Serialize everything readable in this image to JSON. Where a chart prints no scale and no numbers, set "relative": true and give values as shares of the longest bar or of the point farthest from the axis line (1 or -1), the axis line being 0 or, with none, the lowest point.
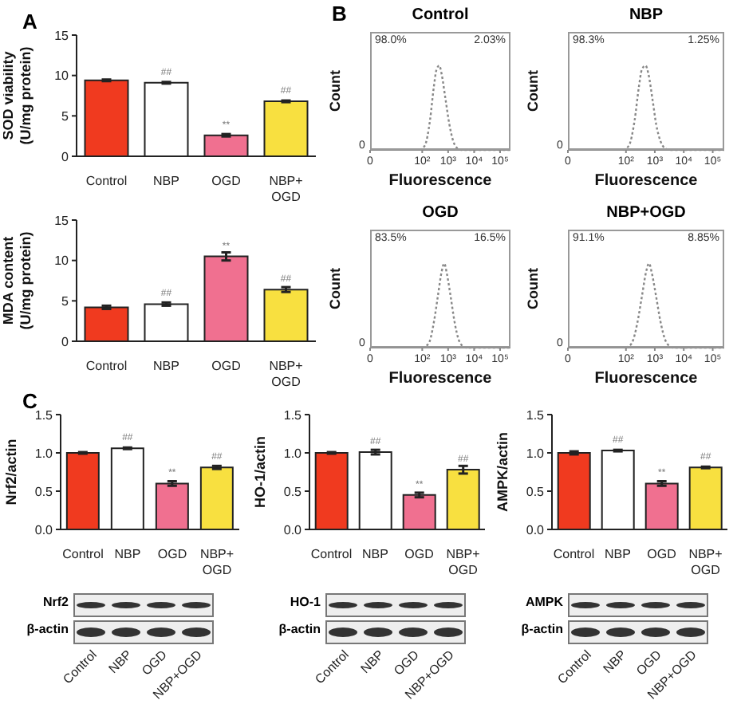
{
  "chart_data": [
    {
      "type": "bar",
      "ylabel": "SOD viability (U/mg protein)",
      "categories": [
        "Control",
        "NBP",
        "OGD",
        "NBP+ OGD"
      ],
      "values": [
        9.4,
        9.1,
        2.6,
        6.8
      ],
      "errors": [
        0.1,
        0.1,
        0.15,
        0.1
      ],
      "value_labels": [
        null,
        "##",
        "**",
        "##"
      ],
      "colors": [
        "#f03a1f",
        "#ffffff",
        "#f07090",
        "#f8e040"
      ],
      "ylim": [
        0,
        15
      ],
      "yticks": [
        0,
        5,
        10,
        15
      ],
      "annotations": [
        "A"
      ]
    },
    {
      "type": "bar",
      "ylabel": "MDA content (U/mg protein)",
      "categories": [
        "Control",
        "NBP",
        "OGD",
        "NBP+ OGD"
      ],
      "values": [
        4.2,
        4.6,
        10.5,
        6.4
      ],
      "errors": [
        0.2,
        0.2,
        0.5,
        0.3
      ],
      "value_labels": [
        null,
        "##",
        "**",
        "##"
      ],
      "colors": [
        "#f03a1f",
        "#ffffff",
        "#f07090",
        "#f8e040"
      ],
      "ylim": [
        0,
        15
      ],
      "yticks": [
        0,
        5,
        10,
        15
      ]
    },
    {
      "type": "line",
      "title": "Control",
      "xlabel": "Fluorescence",
      "ylabel": "Count",
      "relative": true,
      "x": [
        79,
        126,
        200,
        282,
        355,
        457,
        562,
        794,
        1120,
        1590,
        2240,
        3160,
        250000
      ],
      "values": [
        0,
        0.05,
        0.35,
        0.75,
        0.95,
        1,
        0.9,
        0.6,
        0.3,
        0.1,
        0.02,
        0,
        0
      ],
      "color": "#888888",
      "line_style": "dotted",
      "marker": "none",
      "log": "x",
      "xlim": [
        0,
        250000
      ],
      "xticks": [
        {
          "value": 0,
          "label": "0"
        },
        {
          "value": 100,
          "label": "10²"
        },
        {
          "value": 1000,
          "label": "10³"
        },
        {
          "value": 10000,
          "label": "10⁴"
        },
        {
          "value": 100000,
          "label": "10⁵"
        }
      ],
      "annotations": [
        "B",
        "0",
        "98.0%",
        "2.03%"
      ]
    },
    {
      "type": "line",
      "title": "NBP",
      "xlabel": "Fluorescence",
      "ylabel": "Count",
      "relative": true,
      "x": [
        79,
        126,
        200,
        282,
        355,
        479,
        603,
        832,
        1120,
        1590,
        2240,
        3160,
        250000
      ],
      "values": [
        0,
        0.05,
        0.35,
        0.75,
        0.95,
        1,
        0.9,
        0.6,
        0.3,
        0.1,
        0.02,
        0,
        0
      ],
      "color": "#888888",
      "line_style": "dotted",
      "marker": "none",
      "log": "x",
      "xlim": [
        0,
        250000
      ],
      "xticks": [
        {
          "value": 0,
          "label": "0"
        },
        {
          "value": 100,
          "label": "10²"
        },
        {
          "value": 1000,
          "label": "10³"
        },
        {
          "value": 10000,
          "label": "10⁴"
        },
        {
          "value": 100000,
          "label": "10⁵"
        }
      ],
      "annotations": [
        "0",
        "98.3%",
        "1.25%"
      ]
    },
    {
      "type": "line",
      "title": "OGD",
      "xlabel": "Fluorescence",
      "ylabel": "Count",
      "relative": true,
      "x": [
        100,
        178,
        282,
        398,
        562,
        708,
        891,
        1260,
        1780,
        2510,
        3550,
        5010,
        250000
      ],
      "values": [
        0,
        0.05,
        0.3,
        0.6,
        0.9,
        1,
        0.88,
        0.6,
        0.3,
        0.1,
        0.02,
        0,
        0
      ],
      "color": "#888888",
      "line_style": "dotted",
      "marker": "none",
      "log": "x",
      "xlim": [
        0,
        250000
      ],
      "xticks": [
        {
          "value": 0,
          "label": "0"
        },
        {
          "value": 100,
          "label": "10²"
        },
        {
          "value": 1000,
          "label": "10³"
        },
        {
          "value": 10000,
          "label": "10⁴"
        },
        {
          "value": 100000,
          "label": "10⁵"
        }
      ],
      "annotations": [
        "0",
        "83.5%",
        "16.5%"
      ]
    },
    {
      "type": "line",
      "title": "NBP+OGD",
      "xlabel": "Fluorescence",
      "ylabel": "Count",
      "relative": true,
      "x": [
        100,
        158,
        251,
        355,
        501,
        631,
        794,
        1120,
        1590,
        2240,
        3160,
        4470,
        250000
      ],
      "values": [
        0,
        0.05,
        0.3,
        0.6,
        0.9,
        1,
        0.88,
        0.6,
        0.3,
        0.1,
        0.02,
        0,
        0
      ],
      "color": "#888888",
      "line_style": "dotted",
      "marker": "none",
      "log": "x",
      "xlim": [
        0,
        250000
      ],
      "xticks": [
        {
          "value": 0,
          "label": "0"
        },
        {
          "value": 100,
          "label": "10²"
        },
        {
          "value": 1000,
          "label": "10³"
        },
        {
          "value": 10000,
          "label": "10⁴"
        },
        {
          "value": 100000,
          "label": "10⁵"
        }
      ],
      "annotations": [
        "0",
        "91.1%",
        "8.85%"
      ]
    },
    {
      "type": "bar",
      "ylabel": "Nrf2/actin",
      "categories": [
        "Control",
        "NBP",
        "OGD",
        "NBP+ OGD"
      ],
      "values": [
        1.0,
        1.06,
        0.6,
        0.81
      ],
      "errors": [
        0.01,
        0.01,
        0.03,
        0.02
      ],
      "value_labels": [
        null,
        "##",
        "**",
        "##"
      ],
      "colors": [
        "#f03a1f",
        "#ffffff",
        "#f07090",
        "#f8e040"
      ],
      "ylim": [
        0,
        1.5
      ],
      "yticks": [
        {
          "value": 0,
          "label": "0.0"
        },
        {
          "value": 0.5,
          "label": "0.5"
        },
        {
          "value": 1,
          "label": "1.0"
        },
        {
          "value": 1.5,
          "label": "1.5"
        }
      ],
      "annotations": [
        "C"
      ]
    },
    {
      "type": "bar",
      "ylabel": "HO-1/actin",
      "categories": [
        "Control",
        "NBP",
        "OGD",
        "NBP+ OGD"
      ],
      "values": [
        1.0,
        1.01,
        0.45,
        0.78
      ],
      "errors": [
        0.01,
        0.03,
        0.03,
        0.05
      ],
      "value_labels": [
        null,
        "##",
        "**",
        "##"
      ],
      "colors": [
        "#f03a1f",
        "#ffffff",
        "#f07090",
        "#f8e040"
      ],
      "ylim": [
        0,
        1.5
      ],
      "yticks": [
        {
          "value": 0,
          "label": "0.0"
        },
        {
          "value": 0.5,
          "label": "0.5"
        },
        {
          "value": 1,
          "label": "1.0"
        },
        {
          "value": 1.5,
          "label": "1.5"
        }
      ]
    },
    {
      "type": "bar",
      "ylabel": "AMPK/actin",
      "categories": [
        "Control",
        "NBP",
        "OGD",
        "NBP+ OGD"
      ],
      "values": [
        1.0,
        1.03,
        0.6,
        0.81
      ],
      "errors": [
        0.02,
        0.01,
        0.03,
        0.01
      ],
      "value_labels": [
        null,
        "##",
        "**",
        "##"
      ],
      "colors": [
        "#f03a1f",
        "#ffffff",
        "#f07090",
        "#f8e040"
      ],
      "ylim": [
        0,
        1.5
      ],
      "yticks": [
        {
          "value": 0,
          "label": "0.0"
        },
        {
          "value": 0.5,
          "label": "0.5"
        },
        {
          "value": 1,
          "label": "1.0"
        },
        {
          "value": 1.5,
          "label": "1.5"
        }
      ]
    },
    {
      "type": "other",
      "categories": [
        "Control",
        "NBP",
        "OGD",
        "NBP+OGD"
      ],
      "annotations": [
        "Nrf2",
        "β-actin"
      ]
    },
    {
      "type": "other",
      "categories": [
        "Control",
        "NBP",
        "OGD",
        "NBP+OGD"
      ],
      "annotations": [
        "HO-1",
        "β-actin"
      ]
    },
    {
      "type": "other",
      "categories": [
        "Control",
        "NBP",
        "OGD",
        "NBP+OGD"
      ],
      "annotations": [
        "AMPK",
        "β-actin"
      ]
    }
  ]
}
